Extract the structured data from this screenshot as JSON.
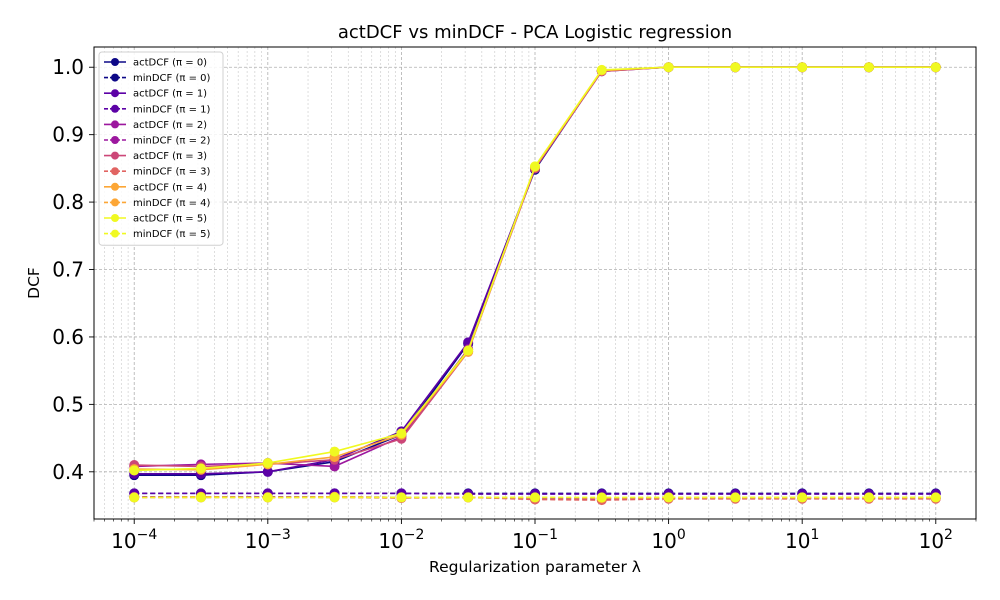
{
  "chart_data": {
    "type": "line",
    "title": "actDCF vs minDCF - PCA Logistic regression",
    "xlabel": "Regularization parameter λ",
    "ylabel": "DCF",
    "x_scale": "log",
    "xlim": [
      5e-05,
      200
    ],
    "ylim": [
      0.33,
      1.03
    ],
    "x_ticks": [
      {
        "value": 0.0001,
        "base": "10",
        "exp": "−4"
      },
      {
        "value": 0.001,
        "base": "10",
        "exp": "−3"
      },
      {
        "value": 0.01,
        "base": "10",
        "exp": "−2"
      },
      {
        "value": 0.1,
        "base": "10",
        "exp": "−1"
      },
      {
        "value": 1,
        "base": "10",
        "exp": "0"
      },
      {
        "value": 10,
        "base": "10",
        "exp": "1"
      },
      {
        "value": 100,
        "base": "10",
        "exp": "2"
      }
    ],
    "y_ticks": [
      {
        "value": 0.4,
        "label": "0.4"
      },
      {
        "value": 0.5,
        "label": "0.5"
      },
      {
        "value": 0.6,
        "label": "0.6"
      },
      {
        "value": 0.7,
        "label": "0.7"
      },
      {
        "value": 0.8,
        "label": "0.8"
      },
      {
        "value": 0.9,
        "label": "0.9"
      },
      {
        "value": 1.0,
        "label": "1.0"
      }
    ],
    "grid": true,
    "legend_position": "top-left",
    "x": [
      0.0001,
      0.000316,
      0.001,
      0.00316,
      0.01,
      0.0316,
      0.1,
      0.316,
      1,
      3.16,
      10,
      31.6,
      100
    ],
    "series": [
      {
        "name": "actDCF (π = 0)",
        "style": "solid",
        "color": "#0d0887",
        "values": [
          0.395,
          0.395,
          0.4,
          0.415,
          0.455,
          0.59,
          0.848,
          0.995,
          1.0,
          1.0,
          1.0,
          1.0,
          1.0
        ]
      },
      {
        "name": "minDCF (π = 0)",
        "style": "dashed",
        "color": "#0d0887",
        "values": [
          0.368,
          0.368,
          0.368,
          0.368,
          0.368,
          0.368,
          0.368,
          0.368,
          0.368,
          0.368,
          0.368,
          0.368,
          0.368
        ]
      },
      {
        "name": "actDCF (π = 1)",
        "style": "solid",
        "color": "#5c01a6",
        "values": [
          0.397,
          0.397,
          0.4,
          0.418,
          0.46,
          0.592,
          0.85,
          0.994,
          1.0,
          1.0,
          1.0,
          1.0,
          1.0
        ]
      },
      {
        "name": "minDCF (π = 1)",
        "style": "dashed",
        "color": "#5c01a6",
        "values": [
          0.368,
          0.368,
          0.368,
          0.368,
          0.368,
          0.367,
          0.367,
          0.367,
          0.367,
          0.367,
          0.367,
          0.367,
          0.367
        ]
      },
      {
        "name": "actDCF (π = 2)",
        "style": "solid",
        "color": "#9c179e",
        "values": [
          0.408,
          0.411,
          0.413,
          0.408,
          0.452,
          0.582,
          0.85,
          0.995,
          1.0,
          1.0,
          1.0,
          1.0,
          1.0
        ]
      },
      {
        "name": "minDCF (π = 2)",
        "style": "dashed",
        "color": "#9c179e",
        "values": [
          0.363,
          0.363,
          0.363,
          0.363,
          0.362,
          0.362,
          0.36,
          0.36,
          0.361,
          0.361,
          0.361,
          0.361,
          0.361
        ]
      },
      {
        "name": "actDCF (π = 3)",
        "style": "solid",
        "color": "#cc4778",
        "values": [
          0.41,
          0.408,
          0.411,
          0.418,
          0.449,
          0.578,
          0.85,
          0.994,
          1.0,
          1.0,
          1.0,
          1.0,
          1.0
        ]
      },
      {
        "name": "minDCF (π = 3)",
        "style": "dashed",
        "color": "#e16462",
        "values": [
          0.362,
          0.362,
          0.362,
          0.362,
          0.361,
          0.362,
          0.359,
          0.358,
          0.36,
          0.36,
          0.36,
          0.36,
          0.36
        ]
      },
      {
        "name": "actDCF (π = 4)",
        "style": "solid",
        "color": "#fca636",
        "values": [
          0.404,
          0.403,
          0.411,
          0.422,
          0.455,
          0.578,
          0.852,
          0.995,
          1.0,
          1.0,
          1.0,
          1.0,
          1.0
        ]
      },
      {
        "name": "minDCF (π = 4)",
        "style": "dashed",
        "color": "#fca636",
        "values": [
          0.362,
          0.363,
          0.362,
          0.363,
          0.362,
          0.362,
          0.362,
          0.361,
          0.362,
          0.362,
          0.362,
          0.362,
          0.362
        ]
      },
      {
        "name": "actDCF (π = 5)",
        "style": "solid",
        "color": "#f0f921",
        "values": [
          0.402,
          0.405,
          0.413,
          0.43,
          0.457,
          0.58,
          0.853,
          0.996,
          1.0,
          1.0,
          1.0,
          1.0,
          1.0
        ]
      },
      {
        "name": "minDCF (π = 5)",
        "style": "dashed",
        "color": "#f0f921",
        "values": [
          0.362,
          0.362,
          0.362,
          0.362,
          0.362,
          0.362,
          0.362,
          0.362,
          0.362,
          0.362,
          0.362,
          0.362,
          0.362
        ]
      }
    ]
  }
}
